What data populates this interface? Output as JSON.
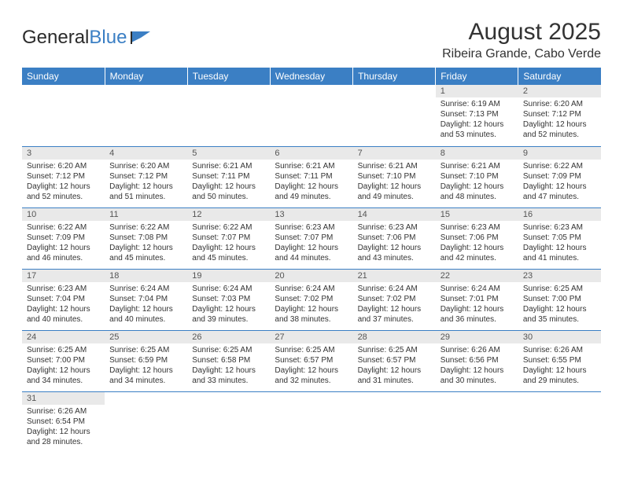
{
  "brand": {
    "part1": "General",
    "part2": "Blue"
  },
  "title": "August 2025",
  "location": "Ribeira Grande, Cabo Verde",
  "colors": {
    "header_bg": "#3b7fc4",
    "header_text": "#ffffff",
    "daynum_bg": "#e9e9e9",
    "row_divider": "#3b7fc4",
    "text": "#333333"
  },
  "weekdays": [
    "Sunday",
    "Monday",
    "Tuesday",
    "Wednesday",
    "Thursday",
    "Friday",
    "Saturday"
  ],
  "weeks": [
    [
      null,
      null,
      null,
      null,
      null,
      {
        "n": "1",
        "sr": "6:19 AM",
        "ss": "7:13 PM",
        "dl": "12 hours and 53 minutes."
      },
      {
        "n": "2",
        "sr": "6:20 AM",
        "ss": "7:12 PM",
        "dl": "12 hours and 52 minutes."
      }
    ],
    [
      {
        "n": "3",
        "sr": "6:20 AM",
        "ss": "7:12 PM",
        "dl": "12 hours and 52 minutes."
      },
      {
        "n": "4",
        "sr": "6:20 AM",
        "ss": "7:12 PM",
        "dl": "12 hours and 51 minutes."
      },
      {
        "n": "5",
        "sr": "6:21 AM",
        "ss": "7:11 PM",
        "dl": "12 hours and 50 minutes."
      },
      {
        "n": "6",
        "sr": "6:21 AM",
        "ss": "7:11 PM",
        "dl": "12 hours and 49 minutes."
      },
      {
        "n": "7",
        "sr": "6:21 AM",
        "ss": "7:10 PM",
        "dl": "12 hours and 49 minutes."
      },
      {
        "n": "8",
        "sr": "6:21 AM",
        "ss": "7:10 PM",
        "dl": "12 hours and 48 minutes."
      },
      {
        "n": "9",
        "sr": "6:22 AM",
        "ss": "7:09 PM",
        "dl": "12 hours and 47 minutes."
      }
    ],
    [
      {
        "n": "10",
        "sr": "6:22 AM",
        "ss": "7:09 PM",
        "dl": "12 hours and 46 minutes."
      },
      {
        "n": "11",
        "sr": "6:22 AM",
        "ss": "7:08 PM",
        "dl": "12 hours and 45 minutes."
      },
      {
        "n": "12",
        "sr": "6:22 AM",
        "ss": "7:07 PM",
        "dl": "12 hours and 45 minutes."
      },
      {
        "n": "13",
        "sr": "6:23 AM",
        "ss": "7:07 PM",
        "dl": "12 hours and 44 minutes."
      },
      {
        "n": "14",
        "sr": "6:23 AM",
        "ss": "7:06 PM",
        "dl": "12 hours and 43 minutes."
      },
      {
        "n": "15",
        "sr": "6:23 AM",
        "ss": "7:06 PM",
        "dl": "12 hours and 42 minutes."
      },
      {
        "n": "16",
        "sr": "6:23 AM",
        "ss": "7:05 PM",
        "dl": "12 hours and 41 minutes."
      }
    ],
    [
      {
        "n": "17",
        "sr": "6:23 AM",
        "ss": "7:04 PM",
        "dl": "12 hours and 40 minutes."
      },
      {
        "n": "18",
        "sr": "6:24 AM",
        "ss": "7:04 PM",
        "dl": "12 hours and 40 minutes."
      },
      {
        "n": "19",
        "sr": "6:24 AM",
        "ss": "7:03 PM",
        "dl": "12 hours and 39 minutes."
      },
      {
        "n": "20",
        "sr": "6:24 AM",
        "ss": "7:02 PM",
        "dl": "12 hours and 38 minutes."
      },
      {
        "n": "21",
        "sr": "6:24 AM",
        "ss": "7:02 PM",
        "dl": "12 hours and 37 minutes."
      },
      {
        "n": "22",
        "sr": "6:24 AM",
        "ss": "7:01 PM",
        "dl": "12 hours and 36 minutes."
      },
      {
        "n": "23",
        "sr": "6:25 AM",
        "ss": "7:00 PM",
        "dl": "12 hours and 35 minutes."
      }
    ],
    [
      {
        "n": "24",
        "sr": "6:25 AM",
        "ss": "7:00 PM",
        "dl": "12 hours and 34 minutes."
      },
      {
        "n": "25",
        "sr": "6:25 AM",
        "ss": "6:59 PM",
        "dl": "12 hours and 34 minutes."
      },
      {
        "n": "26",
        "sr": "6:25 AM",
        "ss": "6:58 PM",
        "dl": "12 hours and 33 minutes."
      },
      {
        "n": "27",
        "sr": "6:25 AM",
        "ss": "6:57 PM",
        "dl": "12 hours and 32 minutes."
      },
      {
        "n": "28",
        "sr": "6:25 AM",
        "ss": "6:57 PM",
        "dl": "12 hours and 31 minutes."
      },
      {
        "n": "29",
        "sr": "6:26 AM",
        "ss": "6:56 PM",
        "dl": "12 hours and 30 minutes."
      },
      {
        "n": "30",
        "sr": "6:26 AM",
        "ss": "6:55 PM",
        "dl": "12 hours and 29 minutes."
      }
    ],
    [
      {
        "n": "31",
        "sr": "6:26 AM",
        "ss": "6:54 PM",
        "dl": "12 hours and 28 minutes."
      },
      null,
      null,
      null,
      null,
      null,
      null
    ]
  ],
  "labels": {
    "sunrise": "Sunrise:",
    "sunset": "Sunset:",
    "daylight": "Daylight:"
  }
}
